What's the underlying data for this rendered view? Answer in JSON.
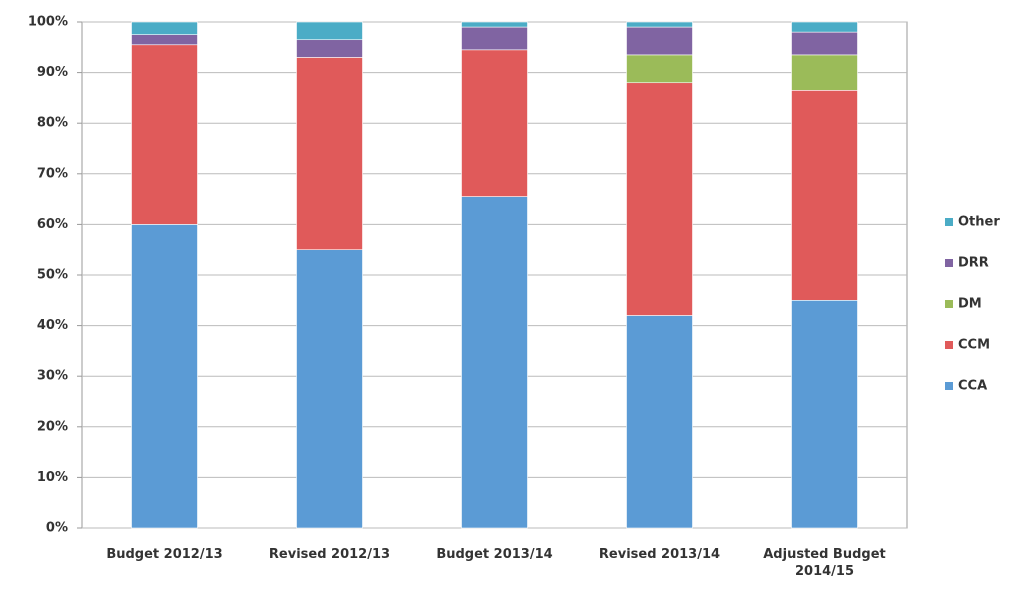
{
  "chart_data": {
    "type": "stacked_bar",
    "categories": [
      "Budget 2012/13",
      "Revised 2012/13",
      "Budget 2013/14",
      "Revised 2013/14",
      "Adjusted Budget 2014/15"
    ],
    "series": [
      {
        "name": "CCA",
        "color": "#5b9bd5",
        "values": [
          60,
          55,
          65.5,
          42,
          45
        ]
      },
      {
        "name": "CCM",
        "color": "#e05a5a",
        "values": [
          35.5,
          38,
          29,
          46,
          41.5
        ]
      },
      {
        "name": "DM",
        "color": "#9bbb59",
        "values": [
          0,
          0,
          0,
          5.5,
          7
        ]
      },
      {
        "name": "DRR",
        "color": "#8064a2",
        "values": [
          2,
          3.5,
          4.5,
          5.5,
          4.5
        ]
      },
      {
        "name": "Other",
        "color": "#4bacc6",
        "values": [
          2.5,
          3.5,
          1,
          1,
          2
        ]
      }
    ],
    "ylim": [
      0,
      100
    ],
    "yticks": [
      {
        "value": 0,
        "label": "0%"
      },
      {
        "value": 10,
        "label": "10%"
      },
      {
        "value": 20,
        "label": "20%"
      },
      {
        "value": 30,
        "label": "30%"
      },
      {
        "value": 40,
        "label": "40%"
      },
      {
        "value": 50,
        "label": "50%"
      },
      {
        "value": 60,
        "label": "60%"
      },
      {
        "value": 70,
        "label": "70%"
      },
      {
        "value": 80,
        "label": "80%"
      },
      {
        "value": 90,
        "label": "90%"
      },
      {
        "value": 100,
        "label": "100%"
      }
    ],
    "grid": true,
    "legend": "right"
  }
}
